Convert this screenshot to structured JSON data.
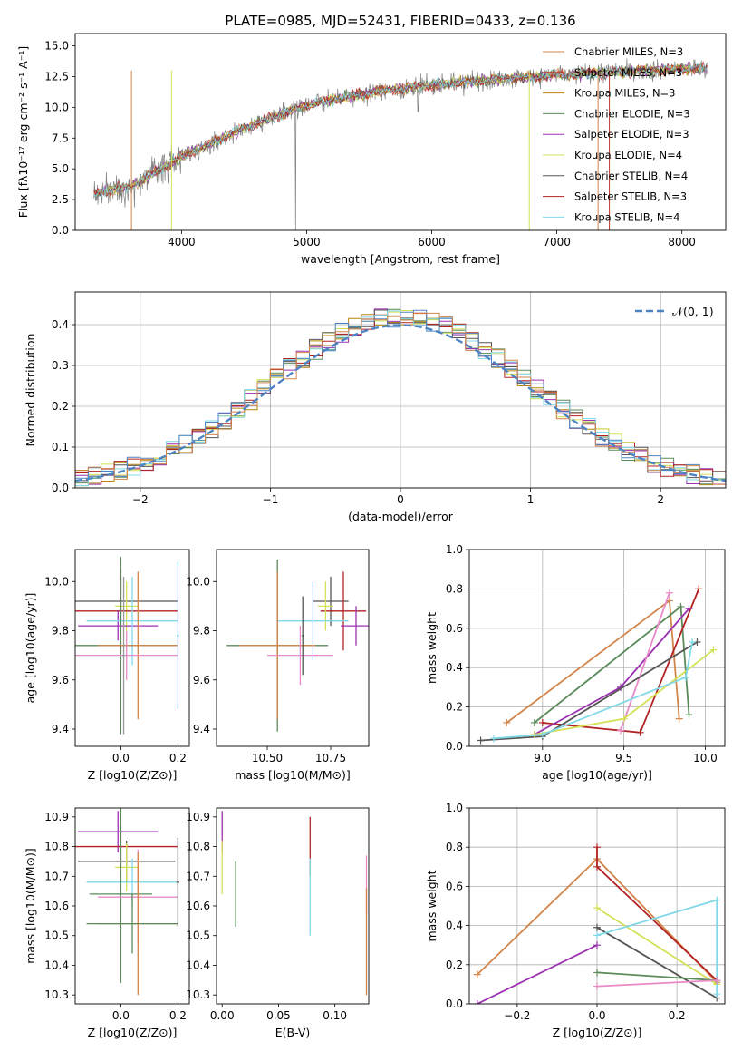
{
  "title": "PLATE=0985, MJD=52431, FIBERID=0433, z=0.136",
  "colors": [
    "#b8860b",
    "#5b8a5b",
    "#9b30b0",
    "#d4e157",
    "#555555",
    "#b22222",
    "#80d8e8",
    "#e88ac8",
    "#d2854a",
    "#4f84c4",
    "#999999"
  ],
  "chart_data": [
    {
      "id": "spectrum",
      "type": "line",
      "title": "PLATE=0985, MJD=52431, FIBERID=0433, z=0.136",
      "xlabel": "wavelength [Angstrom, rest frame]",
      "ylabel": "Flux [fλ10⁻¹⁷ erg cm⁻² s⁻¹ A⁻¹]",
      "xlim": [
        3150,
        8350
      ],
      "ylim": [
        0,
        16
      ],
      "xticks": [
        4000,
        5000,
        6000,
        7000,
        8000
      ],
      "yticks": [
        0.0,
        2.5,
        5.0,
        7.5,
        10.0,
        12.5,
        15.0
      ],
      "legend_position": "top-right",
      "continuum_model": {
        "x": [
          3300,
          3600,
          4000,
          4500,
          5000,
          5500,
          6000,
          6500,
          7000,
          7500,
          8000,
          8200
        ],
        "y": [
          3.0,
          3.6,
          6.0,
          8.3,
          10.2,
          11.2,
          11.8,
          12.3,
          12.6,
          12.9,
          13.1,
          13.2
        ]
      },
      "series": [
        {
          "name": "Chabrier MILES, N_SSP=3",
          "color": "#d2854a"
        },
        {
          "name": "Salpeter MILES, N_SSP=3",
          "color": "#c0392b"
        },
        {
          "name": "Kroupa MILES, N_SSP=3",
          "color": "#b8860b"
        },
        {
          "name": "Chabrier ELODIE, N_SSP=3",
          "color": "#5b8a5b"
        },
        {
          "name": "Salpeter ELODIE, N_SSP=3",
          "color": "#9b30b0"
        },
        {
          "name": "Kroupa ELODIE, N_SSP=4",
          "color": "#d4e157"
        },
        {
          "name": "Chabrier STELIB, N_SSP=4",
          "color": "#555555"
        },
        {
          "name": "Salpeter STELIB, N_SSP=3",
          "color": "#b22222"
        },
        {
          "name": "Kroupa STELIB, N_SSP=4",
          "color": "#80d8e8"
        }
      ]
    },
    {
      "id": "residuals",
      "type": "line",
      "xlabel": "(data-model)/error",
      "ylabel": "Normed distribution",
      "xlim": [
        -2.5,
        2.5
      ],
      "ylim": [
        0,
        0.48
      ],
      "xticks": [
        -2,
        -1,
        0,
        1,
        2
      ],
      "yticks": [
        0.0,
        0.1,
        0.2,
        0.3,
        0.4
      ],
      "grid": true,
      "legend_position": "top-right",
      "gaussian_label": "𝒩(0, 1)",
      "gaussian_color": "#4f84c4"
    },
    {
      "id": "age_vs_Z",
      "type": "scatter",
      "xlabel": "Z [log10(Z/Z⊙)]",
      "ylabel": "age  [log10(age/yr)]",
      "xlim": [
        -0.16,
        0.24
      ],
      "ylim": [
        9.33,
        10.13
      ],
      "xticks": [
        0.0,
        0.2
      ],
      "yticks": [
        9.4,
        9.6,
        9.8,
        10.0
      ],
      "points": [
        {
          "x": 0.0,
          "y": 9.92,
          "xerr": 0.2,
          "yerr": 0.1,
          "color": "#555555"
        },
        {
          "x": 0.02,
          "y": 9.9,
          "xerr": 0.04,
          "yerr": 0.1,
          "color": "#d4e157"
        },
        {
          "x": 0.0,
          "y": 9.88,
          "xerr": 0.2,
          "yerr": 0.17,
          "color": "#b22222"
        },
        {
          "x": -0.01,
          "y": 9.82,
          "xerr": 0.14,
          "yerr": 0.06,
          "color": "#9b30b0"
        },
        {
          "x": 0.04,
          "y": 9.84,
          "xerr": 0.16,
          "yerr": 0.18,
          "color": "#80d8e8"
        },
        {
          "x": 0.0,
          "y": 9.74,
          "xerr": 0.2,
          "yerr": 0.36,
          "color": "#5b8a5b"
        },
        {
          "x": 0.06,
          "y": 9.74,
          "xerr": 0.14,
          "yerr": 0.3,
          "color": "#d2854a"
        },
        {
          "x": 0.02,
          "y": 9.7,
          "xerr": 0.18,
          "yerr": 0.1,
          "color": "#e88ac8"
        },
        {
          "x": 0.2,
          "y": 9.78,
          "xerr": 0.005,
          "yerr": 0.3,
          "color": "#80d8e8"
        },
        {
          "x": 0.01,
          "y": 9.7,
          "xerr": 0.005,
          "yerr": 0.32,
          "color": "#999999"
        }
      ]
    },
    {
      "id": "age_vs_mass",
      "type": "scatter",
      "xlabel": "mass [log10(M/M⊙)]",
      "ylabel": "",
      "xlim": [
        10.3,
        10.9
      ],
      "ylim": [
        9.33,
        10.13
      ],
      "xticks": [
        10.5,
        10.75
      ],
      "xticklabels": [
        "10.50",
        "10.75"
      ],
      "yticks": [
        9.4,
        9.6,
        9.8,
        10.0
      ],
      "points": [
        {
          "x": 10.75,
          "y": 9.92,
          "xerr": 0.07,
          "yerr": 0.1,
          "color": "#555555"
        },
        {
          "x": 10.8,
          "y": 9.88,
          "xerr": 0.09,
          "yerr": 0.16,
          "color": "#b22222"
        },
        {
          "x": 10.73,
          "y": 9.9,
          "xerr": 0.03,
          "yerr": 0.1,
          "color": "#d4e157"
        },
        {
          "x": 10.85,
          "y": 9.82,
          "xerr": 0.06,
          "yerr": 0.08,
          "color": "#9b30b0"
        },
        {
          "x": 10.68,
          "y": 9.84,
          "xerr": 0.14,
          "yerr": 0.16,
          "color": "#80d8e8"
        },
        {
          "x": 10.54,
          "y": 9.74,
          "xerr": 0.2,
          "yerr": 0.35,
          "color": "#5b8a5b"
        },
        {
          "x": 10.54,
          "y": 9.74,
          "xerr": 0.15,
          "yerr": 0.3,
          "color": "#d2854a"
        },
        {
          "x": 10.63,
          "y": 9.7,
          "xerr": 0.13,
          "yerr": 0.12,
          "color": "#e88ac8"
        },
        {
          "x": 10.64,
          "y": 9.78,
          "xerr": 0.005,
          "yerr": 0.16,
          "color": "#555555"
        }
      ]
    },
    {
      "id": "weight_vs_age",
      "type": "line",
      "xlabel": "age  [log10(age/yr)]",
      "ylabel": "mass weight",
      "xlim": [
        8.55,
        10.12
      ],
      "ylim": [
        0,
        1
      ],
      "xticks": [
        9.0,
        9.5,
        10.0
      ],
      "yticks": [
        0.0,
        0.2,
        0.4,
        0.6,
        0.8,
        1.0
      ],
      "grid": true,
      "series": [
        {
          "color": "#d2854a",
          "x": [
            8.78,
            9.78,
            9.84
          ],
          "y": [
            0.12,
            0.74,
            0.14
          ]
        },
        {
          "color": "#5b8a5b",
          "x": [
            8.95,
            9.85,
            9.9
          ],
          "y": [
            0.12,
            0.71,
            0.16
          ]
        },
        {
          "color": "#b22222",
          "x": [
            9.0,
            9.6,
            9.96
          ],
          "y": [
            0.12,
            0.07,
            0.8
          ]
        },
        {
          "color": "#9b30b0",
          "x": [
            8.95,
            9.48,
            9.9
          ],
          "y": [
            0.06,
            0.3,
            0.7
          ]
        },
        {
          "color": "#e88ac8",
          "x": [
            9.48,
            9.78
          ],
          "y": [
            0.08,
            0.78
          ]
        },
        {
          "color": "#555555",
          "x": [
            8.62,
            9.0,
            9.95
          ],
          "y": [
            0.03,
            0.05,
            0.53
          ]
        },
        {
          "color": "#d4e157",
          "x": [
            8.95,
            9.5,
            10.05
          ],
          "y": [
            0.06,
            0.14,
            0.49
          ]
        },
        {
          "color": "#80d8e8",
          "x": [
            8.7,
            9.0,
            9.88,
            9.92
          ],
          "y": [
            0.04,
            0.06,
            0.35,
            0.53
          ]
        }
      ]
    },
    {
      "id": "mass_vs_Z",
      "type": "scatter",
      "xlabel": "Z [log10(Z/Z⊙)]",
      "ylabel": "mass [log10(M/M⊙)]",
      "xlim": [
        -0.16,
        0.24
      ],
      "ylim": [
        10.27,
        10.93
      ],
      "xticks": [
        0.0,
        0.2
      ],
      "yticks": [
        10.3,
        10.4,
        10.5,
        10.6,
        10.7,
        10.8,
        10.9
      ],
      "points": [
        {
          "x": -0.01,
          "y": 10.85,
          "xerr": 0.14,
          "yerr": 0.07,
          "color": "#9b30b0"
        },
        {
          "x": 0.0,
          "y": 10.8,
          "xerr": 0.2,
          "yerr": 0.07,
          "color": "#b22222"
        },
        {
          "x": 0.02,
          "y": 10.75,
          "xerr": 0.17,
          "yerr": 0.07,
          "color": "#555555"
        },
        {
          "x": 0.02,
          "y": 10.73,
          "xerr": 0.04,
          "yerr": 0.08,
          "color": "#d4e157"
        },
        {
          "x": 0.04,
          "y": 10.68,
          "xerr": 0.16,
          "yerr": 0.08,
          "color": "#80d8e8"
        },
        {
          "x": 0.0,
          "y": 10.64,
          "xerr": 0.11,
          "yerr": 0.3,
          "color": "#5b8a5b"
        },
        {
          "x": 0.06,
          "y": 10.63,
          "xerr": 0.14,
          "yerr": 0.16,
          "color": "#e88ac8"
        },
        {
          "x": 0.06,
          "y": 10.54,
          "xerr": 0.14,
          "yerr": 0.24,
          "color": "#d2854a"
        },
        {
          "x": 0.04,
          "y": 10.54,
          "xerr": 0.16,
          "yerr": 0.1,
          "color": "#5b8a5b"
        },
        {
          "x": 0.2,
          "y": 10.68,
          "xerr": 0.005,
          "yerr": 0.15,
          "color": "#555555"
        }
      ]
    },
    {
      "id": "mass_vs_ebv",
      "type": "scatter",
      "xlabel": "E(B-V)",
      "ylabel": "",
      "xlim": [
        -0.005,
        0.13
      ],
      "ylim": [
        10.27,
        10.93
      ],
      "xticks": [
        0.0,
        0.05,
        0.1
      ],
      "xticklabels": [
        "0.00",
        "0.05",
        "0.10"
      ],
      "yticks": [
        10.3,
        10.4,
        10.5,
        10.6,
        10.7,
        10.8,
        10.9
      ],
      "points": [
        {
          "x": 0.0,
          "y": 10.85,
          "yerr": 0.07,
          "color": "#9b30b0"
        },
        {
          "x": 0.0,
          "y": 10.73,
          "yerr": 0.09,
          "color": "#d4e157"
        },
        {
          "x": 0.012,
          "y": 10.64,
          "yerr": 0.11,
          "color": "#5b8a5b"
        },
        {
          "x": 0.078,
          "y": 10.8,
          "yerr": 0.1,
          "color": "#b22222"
        },
        {
          "x": 0.078,
          "y": 10.63,
          "yerr": 0.13,
          "color": "#80d8e8"
        },
        {
          "x": 0.128,
          "y": 10.67,
          "yerr": 0.1,
          "color": "#e88ac8"
        },
        {
          "x": 0.128,
          "y": 10.48,
          "yerr": 0.18,
          "color": "#d2854a"
        }
      ]
    },
    {
      "id": "weight_vs_Z",
      "type": "line",
      "xlabel": "Z [log10(Z/Z⊙)]",
      "ylabel": "mass weight",
      "xlim": [
        -0.32,
        0.32
      ],
      "ylim": [
        0,
        1
      ],
      "xticks": [
        -0.2,
        0.0,
        0.2
      ],
      "yticks": [
        0.0,
        0.2,
        0.4,
        0.6,
        0.8,
        1.0
      ],
      "grid": true,
      "series": [
        {
          "color": "#d2854a",
          "x": [
            -0.3,
            0.0,
            0.3
          ],
          "y": [
            0.15,
            0.74,
            0.11
          ]
        },
        {
          "color": "#b22222",
          "x": [
            0.0,
            0.0,
            0.3
          ],
          "y": [
            0.8,
            0.7,
            0.12
          ]
        },
        {
          "color": "#9b30b0",
          "x": [
            -0.3,
            0.0
          ],
          "y": [
            0.0,
            0.3
          ]
        },
        {
          "color": "#d4e157",
          "x": [
            0.0,
            0.3
          ],
          "y": [
            0.49,
            0.1
          ]
        },
        {
          "color": "#555555",
          "x": [
            0.0,
            0.3
          ],
          "y": [
            0.39,
            0.03
          ]
        },
        {
          "color": "#80d8e8",
          "x": [
            0.0,
            0.3,
            0.3
          ],
          "y": [
            0.35,
            0.53,
            0.05
          ]
        },
        {
          "color": "#5b8a5b",
          "x": [
            0.0,
            0.3
          ],
          "y": [
            0.16,
            0.12
          ]
        },
        {
          "color": "#e88ac8",
          "x": [
            0.0,
            0.3
          ],
          "y": [
            0.09,
            0.12
          ]
        }
      ]
    }
  ]
}
